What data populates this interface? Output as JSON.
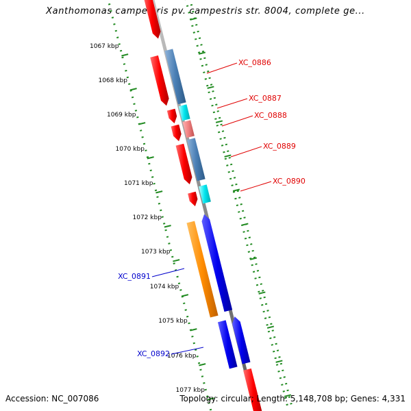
{
  "title": "Xanthomonas campestris pv. campestris str. 8004, complete ge...",
  "footer": {
    "accession": "Accession: NC_007086",
    "summary": "Topology: circular; Length: 5,148,708 bp; Genes: 4,331"
  },
  "kbp_ticks": [
    "1067 kbp",
    "1068 kbp",
    "1069 kbp",
    "1070 kbp",
    "1071 kbp",
    "1072 kbp",
    "1073 kbp",
    "1074 kbp",
    "1075 kbp",
    "1076 kbp",
    "1077 kbp"
  ],
  "gene_labels": [
    {
      "text": "XC_0886",
      "color": "#e00000"
    },
    {
      "text": "XC_0887",
      "color": "#e00000"
    },
    {
      "text": "XC_0888",
      "color": "#e00000"
    },
    {
      "text": "XC_0889",
      "color": "#e00000"
    },
    {
      "text": "XC_0890",
      "color": "#e00000"
    },
    {
      "text": "XC_0891",
      "color": "#0000cc"
    },
    {
      "text": "XC_0892",
      "color": "#0000cc"
    }
  ],
  "colors": {
    "backbone": "#8a8a8a",
    "dotted_ring": "#228b22",
    "red_feature": "#ff0000",
    "steelblue_feature": "#4a7fb5",
    "cyan_feature": "#00e5ee",
    "pink_feature": "#f08080",
    "orange_feature": "#ff8c00",
    "blue_feature": "#0000ee"
  }
}
